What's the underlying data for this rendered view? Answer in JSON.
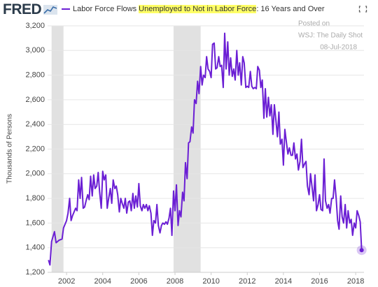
{
  "header": {
    "logo": "FRED"
  },
  "chart_data": {
    "type": "line",
    "y_axis_label": "Thousands of Persons",
    "annotations": [
      "Posted on",
      "WSJ: The Daily Shot",
      "08-Jul-2018"
    ],
    "xlim": [
      2000.95,
      2018.46
    ],
    "xticks": [
      2002,
      2004,
      2006,
      2008,
      2010,
      2012,
      2014,
      2016,
      2018
    ],
    "ylim": [
      1200,
      3200
    ],
    "yticks": [
      {
        "value": 1200,
        "label": "1,200"
      },
      {
        "value": 1400,
        "label": "1,400"
      },
      {
        "value": 1600,
        "label": "1,600"
      },
      {
        "value": 1800,
        "label": "1,800"
      },
      {
        "value": 2000,
        "label": "2,000"
      },
      {
        "value": 2200,
        "label": "2,200"
      },
      {
        "value": 2400,
        "label": "2,400"
      },
      {
        "value": 2600,
        "label": "2,600"
      },
      {
        "value": 2800,
        "label": "2,800"
      },
      {
        "value": 3000,
        "label": "3,000"
      },
      {
        "value": 3200,
        "label": "3,200"
      }
    ],
    "grid": true,
    "recessions": [
      [
        2001.17,
        2001.83
      ],
      [
        2007.92,
        2009.42
      ]
    ],
    "recession_color": "#e1e1e1",
    "x": [
      2001.0,
      2001.08,
      2001.17,
      2001.33,
      2001.42,
      2001.58,
      2001.75,
      2001.83,
      2002.0,
      2002.08,
      2002.17,
      2002.25,
      2002.33,
      2002.5,
      2002.58,
      2002.67,
      2002.75,
      2002.83,
      2002.92,
      2003.0,
      2003.08,
      2003.17,
      2003.25,
      2003.33,
      2003.42,
      2003.5,
      2003.58,
      2003.67,
      2003.75,
      2003.83,
      2003.92,
      2004.0,
      2004.08,
      2004.17,
      2004.25,
      2004.33,
      2004.42,
      2004.5,
      2004.58,
      2004.67,
      2004.75,
      2004.83,
      2004.92,
      2005.0,
      2005.08,
      2005.17,
      2005.25,
      2005.33,
      2005.42,
      2005.5,
      2005.58,
      2005.67,
      2005.75,
      2005.83,
      2005.92,
      2006.0,
      2006.08,
      2006.17,
      2006.25,
      2006.33,
      2006.42,
      2006.5,
      2006.58,
      2006.67,
      2006.75,
      2006.83,
      2006.92,
      2007.0,
      2007.08,
      2007.17,
      2007.25,
      2007.33,
      2007.42,
      2007.5,
      2007.58,
      2007.67,
      2007.75,
      2007.83,
      2007.92,
      2008.0,
      2008.08,
      2008.17,
      2008.25,
      2008.33,
      2008.42,
      2008.5,
      2008.58,
      2008.67,
      2008.75,
      2008.83,
      2008.92,
      2009.0,
      2009.08,
      2009.17,
      2009.25,
      2009.33,
      2009.42,
      2009.5,
      2009.58,
      2009.67,
      2009.75,
      2009.83,
      2009.92,
      2010.0,
      2010.08,
      2010.17,
      2010.25,
      2010.33,
      2010.42,
      2010.5,
      2010.58,
      2010.67,
      2010.75,
      2010.83,
      2010.92,
      2011.0,
      2011.08,
      2011.17,
      2011.25,
      2011.33,
      2011.42,
      2011.5,
      2011.58,
      2011.67,
      2011.75,
      2011.83,
      2011.92,
      2012.0,
      2012.08,
      2012.17,
      2012.25,
      2012.33,
      2012.42,
      2012.5,
      2012.58,
      2012.67,
      2012.75,
      2012.83,
      2012.92,
      2013.0,
      2013.08,
      2013.17,
      2013.25,
      2013.33,
      2013.42,
      2013.5,
      2013.58,
      2013.67,
      2013.75,
      2013.83,
      2013.92,
      2014.0,
      2014.08,
      2014.17,
      2014.25,
      2014.33,
      2014.42,
      2014.5,
      2014.58,
      2014.67,
      2014.75,
      2014.83,
      2014.92,
      2015.0,
      2015.08,
      2015.17,
      2015.25,
      2015.33,
      2015.42,
      2015.5,
      2015.58,
      2015.67,
      2015.75,
      2015.83,
      2015.92,
      2016.0,
      2016.08,
      2016.17,
      2016.25,
      2016.33,
      2016.42,
      2016.5,
      2016.58,
      2016.67,
      2016.75,
      2016.83,
      2016.92,
      2017.0,
      2017.08,
      2017.17,
      2017.25,
      2017.33,
      2017.42,
      2017.5,
      2017.58,
      2017.67,
      2017.75,
      2017.83,
      2017.92,
      2018.0,
      2018.08,
      2018.17,
      2018.25,
      2018.33
    ],
    "series": [
      {
        "name_parts": [
          "Labor Force Flows ",
          "Unemployed to Not in Labor Force",
          ": 16 Years and Over"
        ],
        "color": "#6b1fd4",
        "values": [
          1300,
          1260,
          1450,
          1530,
          1440,
          1460,
          1470,
          1560,
          1620,
          1680,
          1800,
          1620,
          1660,
          1720,
          1700,
          1950,
          1800,
          1970,
          1720,
          1730,
          1780,
          1830,
          1790,
          1980,
          1820,
          1990,
          1880,
          1900,
          2010,
          1850,
          1720,
          2020,
          1950,
          1990,
          1720,
          1800,
          1880,
          1760,
          1950,
          1880,
          1900,
          1830,
          1690,
          1800,
          1760,
          1720,
          1800,
          1680,
          1770,
          1780,
          1700,
          1840,
          1720,
          1820,
          1730,
          1920,
          1740,
          1700,
          1750,
          1720,
          1750,
          1700,
          1740,
          1680,
          1500,
          1620,
          1600,
          1750,
          1580,
          1520,
          1580,
          1600,
          1590,
          1610,
          1590,
          1640,
          1720,
          1500,
          1860,
          1700,
          1910,
          1580,
          1700,
          1650,
          1850,
          1780,
          2090,
          1960,
          2250,
          2260,
          2380,
          2330,
          2600,
          2570,
          2750,
          2650,
          2870,
          2720,
          2800,
          2780,
          2950,
          2850,
          2830,
          2780,
          3050,
          3060,
          2850,
          2860,
          2950,
          2870,
          2880,
          2700,
          3140,
          2850,
          3070,
          2800,
          2940,
          2790,
          2850,
          2760,
          3000,
          2800,
          2900,
          2720,
          2950,
          2900,
          2700,
          2710,
          2700,
          2830,
          2710,
          2690,
          2700,
          2690,
          2870,
          2840,
          2700,
          2760,
          2450,
          2690,
          2460,
          2620,
          2470,
          2560,
          2320,
          2560,
          2440,
          2300,
          2500,
          2240,
          2280,
          2070,
          2360,
          2250,
          2160,
          2210,
          2150,
          2150,
          2250,
          2120,
          2160,
          2030,
          2100,
          2280,
          2050,
          2080,
          2100,
          1900,
          1830,
          2000,
          1900,
          1780,
          1990,
          1700,
          1750,
          1830,
          1710,
          1700,
          2120,
          1780,
          1720,
          1750,
          1680,
          1800,
          1800,
          1950,
          1800,
          1620,
          1550,
          1820,
          1650,
          1600,
          1750,
          1560,
          1700,
          1600,
          1630,
          1500,
          1600,
          1560,
          1700,
          1660,
          1610,
          1380
        ]
      }
    ]
  }
}
